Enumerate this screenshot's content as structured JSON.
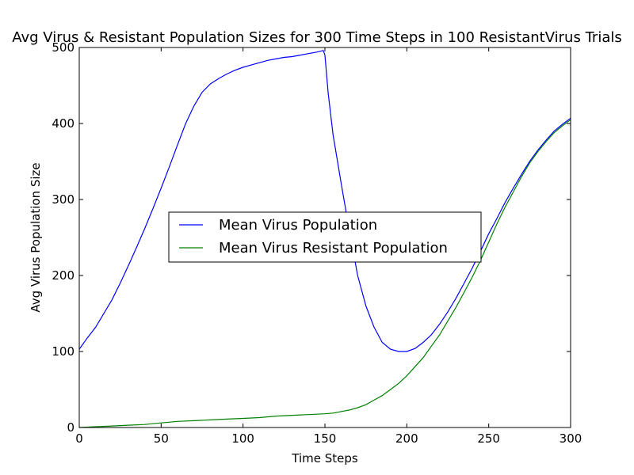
{
  "chart_data": {
    "type": "line",
    "title": "Avg Virus & Resistant Population Sizes for 300 Time Steps in 100 ResistantVirus Trials",
    "xlabel": "Time Steps",
    "ylabel": "Avg Virus Population Size",
    "xlim": [
      0,
      300
    ],
    "ylim": [
      0,
      500
    ],
    "xticks": [
      0,
      50,
      100,
      150,
      200,
      250,
      300
    ],
    "yticks": [
      0,
      100,
      200,
      300,
      400,
      500
    ],
    "grid": false,
    "legend_position": "center",
    "series": [
      {
        "name": "Mean Virus Population",
        "color": "#0000ff",
        "points": [
          [
            0,
            103
          ],
          [
            5,
            118
          ],
          [
            10,
            132
          ],
          [
            15,
            150
          ],
          [
            20,
            168
          ],
          [
            25,
            190
          ],
          [
            30,
            213
          ],
          [
            35,
            237
          ],
          [
            40,
            262
          ],
          [
            45,
            288
          ],
          [
            50,
            315
          ],
          [
            55,
            343
          ],
          [
            60,
            372
          ],
          [
            65,
            400
          ],
          [
            70,
            423
          ],
          [
            75,
            441
          ],
          [
            80,
            452
          ],
          [
            85,
            459
          ],
          [
            90,
            465
          ],
          [
            95,
            470
          ],
          [
            100,
            474
          ],
          [
            105,
            477
          ],
          [
            110,
            480
          ],
          [
            115,
            483
          ],
          [
            120,
            485
          ],
          [
            125,
            487
          ],
          [
            130,
            488
          ],
          [
            135,
            490
          ],
          [
            140,
            492
          ],
          [
            145,
            494
          ],
          [
            149,
            496
          ],
          [
            150,
            490
          ],
          [
            152,
            440
          ],
          [
            155,
            385
          ],
          [
            160,
            320
          ],
          [
            165,
            258
          ],
          [
            170,
            200
          ],
          [
            175,
            160
          ],
          [
            180,
            132
          ],
          [
            185,
            112
          ],
          [
            190,
            103
          ],
          [
            195,
            100
          ],
          [
            200,
            100
          ],
          [
            205,
            104
          ],
          [
            210,
            112
          ],
          [
            215,
            122
          ],
          [
            220,
            136
          ],
          [
            225,
            152
          ],
          [
            230,
            170
          ],
          [
            235,
            190
          ],
          [
            240,
            210
          ],
          [
            245,
            232
          ],
          [
            250,
            255
          ],
          [
            255,
            275
          ],
          [
            260,
            296
          ],
          [
            265,
            315
          ],
          [
            270,
            333
          ],
          [
            275,
            350
          ],
          [
            280,
            365
          ],
          [
            285,
            378
          ],
          [
            290,
            390
          ],
          [
            295,
            399
          ],
          [
            300,
            407
          ]
        ]
      },
      {
        "name": "Mean Virus Resistant Population",
        "color": "#008000",
        "points": [
          [
            0,
            0
          ],
          [
            10,
            1
          ],
          [
            20,
            2
          ],
          [
            30,
            3
          ],
          [
            40,
            4
          ],
          [
            50,
            6
          ],
          [
            60,
            8
          ],
          [
            70,
            9
          ],
          [
            80,
            10
          ],
          [
            90,
            11
          ],
          [
            100,
            12
          ],
          [
            110,
            13
          ],
          [
            120,
            15
          ],
          [
            130,
            16
          ],
          [
            140,
            17
          ],
          [
            150,
            18
          ],
          [
            155,
            19
          ],
          [
            160,
            21
          ],
          [
            165,
            23
          ],
          [
            170,
            26
          ],
          [
            175,
            30
          ],
          [
            180,
            36
          ],
          [
            185,
            42
          ],
          [
            190,
            50
          ],
          [
            195,
            58
          ],
          [
            200,
            68
          ],
          [
            205,
            80
          ],
          [
            210,
            92
          ],
          [
            215,
            107
          ],
          [
            220,
            122
          ],
          [
            225,
            140
          ],
          [
            230,
            158
          ],
          [
            235,
            178
          ],
          [
            240,
            198
          ],
          [
            245,
            220
          ],
          [
            250,
            244
          ],
          [
            255,
            268
          ],
          [
            260,
            290
          ],
          [
            265,
            310
          ],
          [
            270,
            330
          ],
          [
            275,
            348
          ],
          [
            280,
            363
          ],
          [
            285,
            376
          ],
          [
            290,
            388
          ],
          [
            295,
            397
          ],
          [
            300,
            405
          ]
        ]
      }
    ]
  }
}
